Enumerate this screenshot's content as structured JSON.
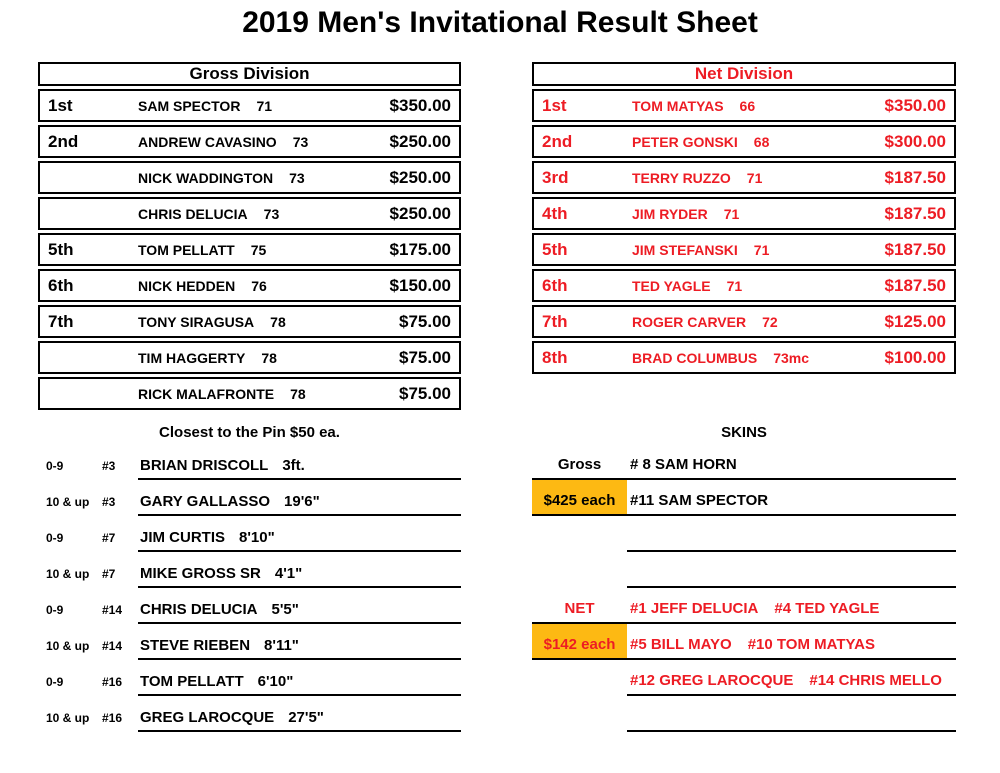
{
  "title": "2019 Men's Invitational Result Sheet",
  "colors": {
    "red": "#ed1c24",
    "highlight": "#fdb913",
    "black": "#000000"
  },
  "gross_division": {
    "header": "Gross Division",
    "rows": [
      {
        "rank": "1st",
        "player": "SAM SPECTOR",
        "score": "71",
        "prize": "$350.00"
      },
      {
        "rank": "2nd",
        "player": "ANDREW CAVASINO",
        "score": "73",
        "prize": "$250.00"
      },
      {
        "rank": "",
        "player": "NICK WADDINGTON",
        "score": "73",
        "prize": "$250.00"
      },
      {
        "rank": "",
        "player": "CHRIS DELUCIA",
        "score": "73",
        "prize": "$250.00"
      },
      {
        "rank": "5th",
        "player": "TOM PELLATT",
        "score": "75",
        "prize": "$175.00"
      },
      {
        "rank": "6th",
        "player": "NICK HEDDEN",
        "score": "76",
        "prize": "$150.00"
      },
      {
        "rank": "7th",
        "player": "TONY SIRAGUSA",
        "score": "78",
        "prize": "$75.00"
      },
      {
        "rank": "",
        "player": "TIM HAGGERTY",
        "score": "78",
        "prize": "$75.00"
      },
      {
        "rank": "",
        "player": "RICK MALAFRONTE",
        "score": "78",
        "prize": "$75.00"
      }
    ]
  },
  "net_division": {
    "header": "Net Division",
    "rows": [
      {
        "rank": "1st",
        "player": "TOM MATYAS",
        "score": "66",
        "prize": "$350.00"
      },
      {
        "rank": "2nd",
        "player": "PETER GONSKI",
        "score": "68",
        "prize": "$300.00"
      },
      {
        "rank": "3rd",
        "player": "TERRY RUZZO",
        "score": "71",
        "prize": "$187.50"
      },
      {
        "rank": "4th",
        "player": "JIM RYDER",
        "score": "71",
        "prize": "$187.50"
      },
      {
        "rank": "5th",
        "player": "JIM STEFANSKI",
        "score": "71",
        "prize": "$187.50"
      },
      {
        "rank": "6th",
        "player": "TED YAGLE",
        "score": "71",
        "prize": "$187.50"
      },
      {
        "rank": "7th",
        "player": "ROGER CARVER",
        "score": "72",
        "prize": "$125.00"
      },
      {
        "rank": "8th",
        "player": "BRAD COLUMBUS",
        "score": "73mc",
        "prize": "$100.00"
      }
    ]
  },
  "closest_to_pin": {
    "title": "Closest to the Pin $50 ea.",
    "rows": [
      {
        "flight": "0-9",
        "hole": "#3",
        "player": "BRIAN DRISCOLL",
        "distance": "3ft."
      },
      {
        "flight": "10 & up",
        "hole": "#3",
        "player": "GARY GALLASSO",
        "distance": "19'6\""
      },
      {
        "flight": "0-9",
        "hole": "#7",
        "player": "JIM CURTIS",
        "distance": "8'10\""
      },
      {
        "flight": "10 & up",
        "hole": "#7",
        "player": "MIKE GROSS SR",
        "distance": "4'1\""
      },
      {
        "flight": "0-9",
        "hole": "#14",
        "player": "CHRIS DELUCIA",
        "distance": "5'5\""
      },
      {
        "flight": "10 & up",
        "hole": "#14",
        "player": "STEVE RIEBEN",
        "distance": "8'11\""
      },
      {
        "flight": "0-9",
        "hole": "#16",
        "player": "TOM PELLATT",
        "distance": "6'10\""
      },
      {
        "flight": "10 & up",
        "hole": "#16",
        "player": "GREG LAROCQUE",
        "distance": "27'5\""
      }
    ]
  },
  "skins": {
    "title": "SKINS",
    "rows": [
      {
        "label": "Gross",
        "entries": [
          "# 8 SAM HORN"
        ],
        "color": "black",
        "highlight": false
      },
      {
        "label": "$425 each",
        "entries": [
          "#11 SAM SPECTOR"
        ],
        "color": "black",
        "highlight": true
      },
      {
        "label": "",
        "entries": [],
        "color": "black",
        "highlight": false
      },
      {
        "label": "",
        "entries": [],
        "color": "black",
        "highlight": false
      },
      {
        "label": "NET",
        "entries": [
          "#1 JEFF DELUCIA",
          "#4 TED YAGLE"
        ],
        "color": "red",
        "highlight": false
      },
      {
        "label": "$142 each",
        "entries": [
          "#5 BILL MAYO",
          "#10 TOM MATYAS"
        ],
        "color": "red",
        "highlight": true
      },
      {
        "label": "",
        "entries": [
          "#12 GREG LAROCQUE",
          "#14 CHRIS MELLO"
        ],
        "color": "red",
        "highlight": false
      },
      {
        "label": "",
        "entries": [],
        "color": "black",
        "highlight": false
      }
    ]
  }
}
